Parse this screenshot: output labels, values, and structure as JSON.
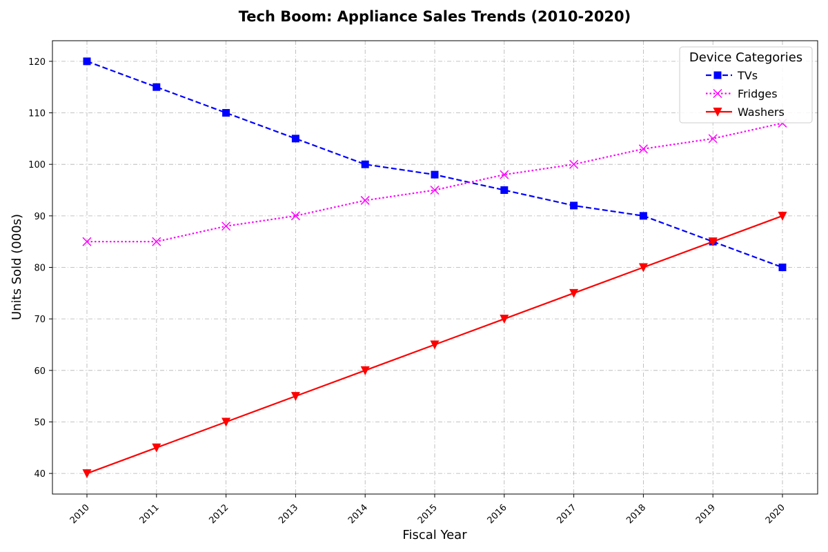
{
  "chart_data": {
    "type": "line",
    "title": "Tech Boom: Appliance Sales Trends (2010-2020)",
    "xlabel": "Fiscal Year",
    "ylabel": "Units Sold (000s)",
    "x": [
      "2010",
      "2011",
      "2012",
      "2013",
      "2014",
      "2015",
      "2016",
      "2017",
      "2018",
      "2019",
      "2020"
    ],
    "ylim": [
      36,
      124
    ],
    "yticks": [
      40,
      50,
      60,
      70,
      80,
      90,
      100,
      110,
      120
    ],
    "grid": true,
    "legend": {
      "title": "Device Categories",
      "placement": "top-right"
    },
    "series": [
      {
        "name": "TVs",
        "color": "#0000ff",
        "marker": "square",
        "line": "dashed",
        "values": [
          120,
          115,
          110,
          105,
          100,
          98,
          95,
          92,
          90,
          85,
          80
        ]
      },
      {
        "name": "Fridges",
        "color": "#ff00ff",
        "marker": "x",
        "line": "dotted",
        "values": [
          85,
          85,
          88,
          90,
          93,
          95,
          98,
          100,
          103,
          105,
          108
        ]
      },
      {
        "name": "Washers",
        "color": "#ff0000",
        "marker": "triangle-down",
        "line": "solid",
        "values": [
          40,
          45,
          50,
          55,
          60,
          65,
          70,
          75,
          80,
          85,
          90
        ]
      }
    ]
  }
}
